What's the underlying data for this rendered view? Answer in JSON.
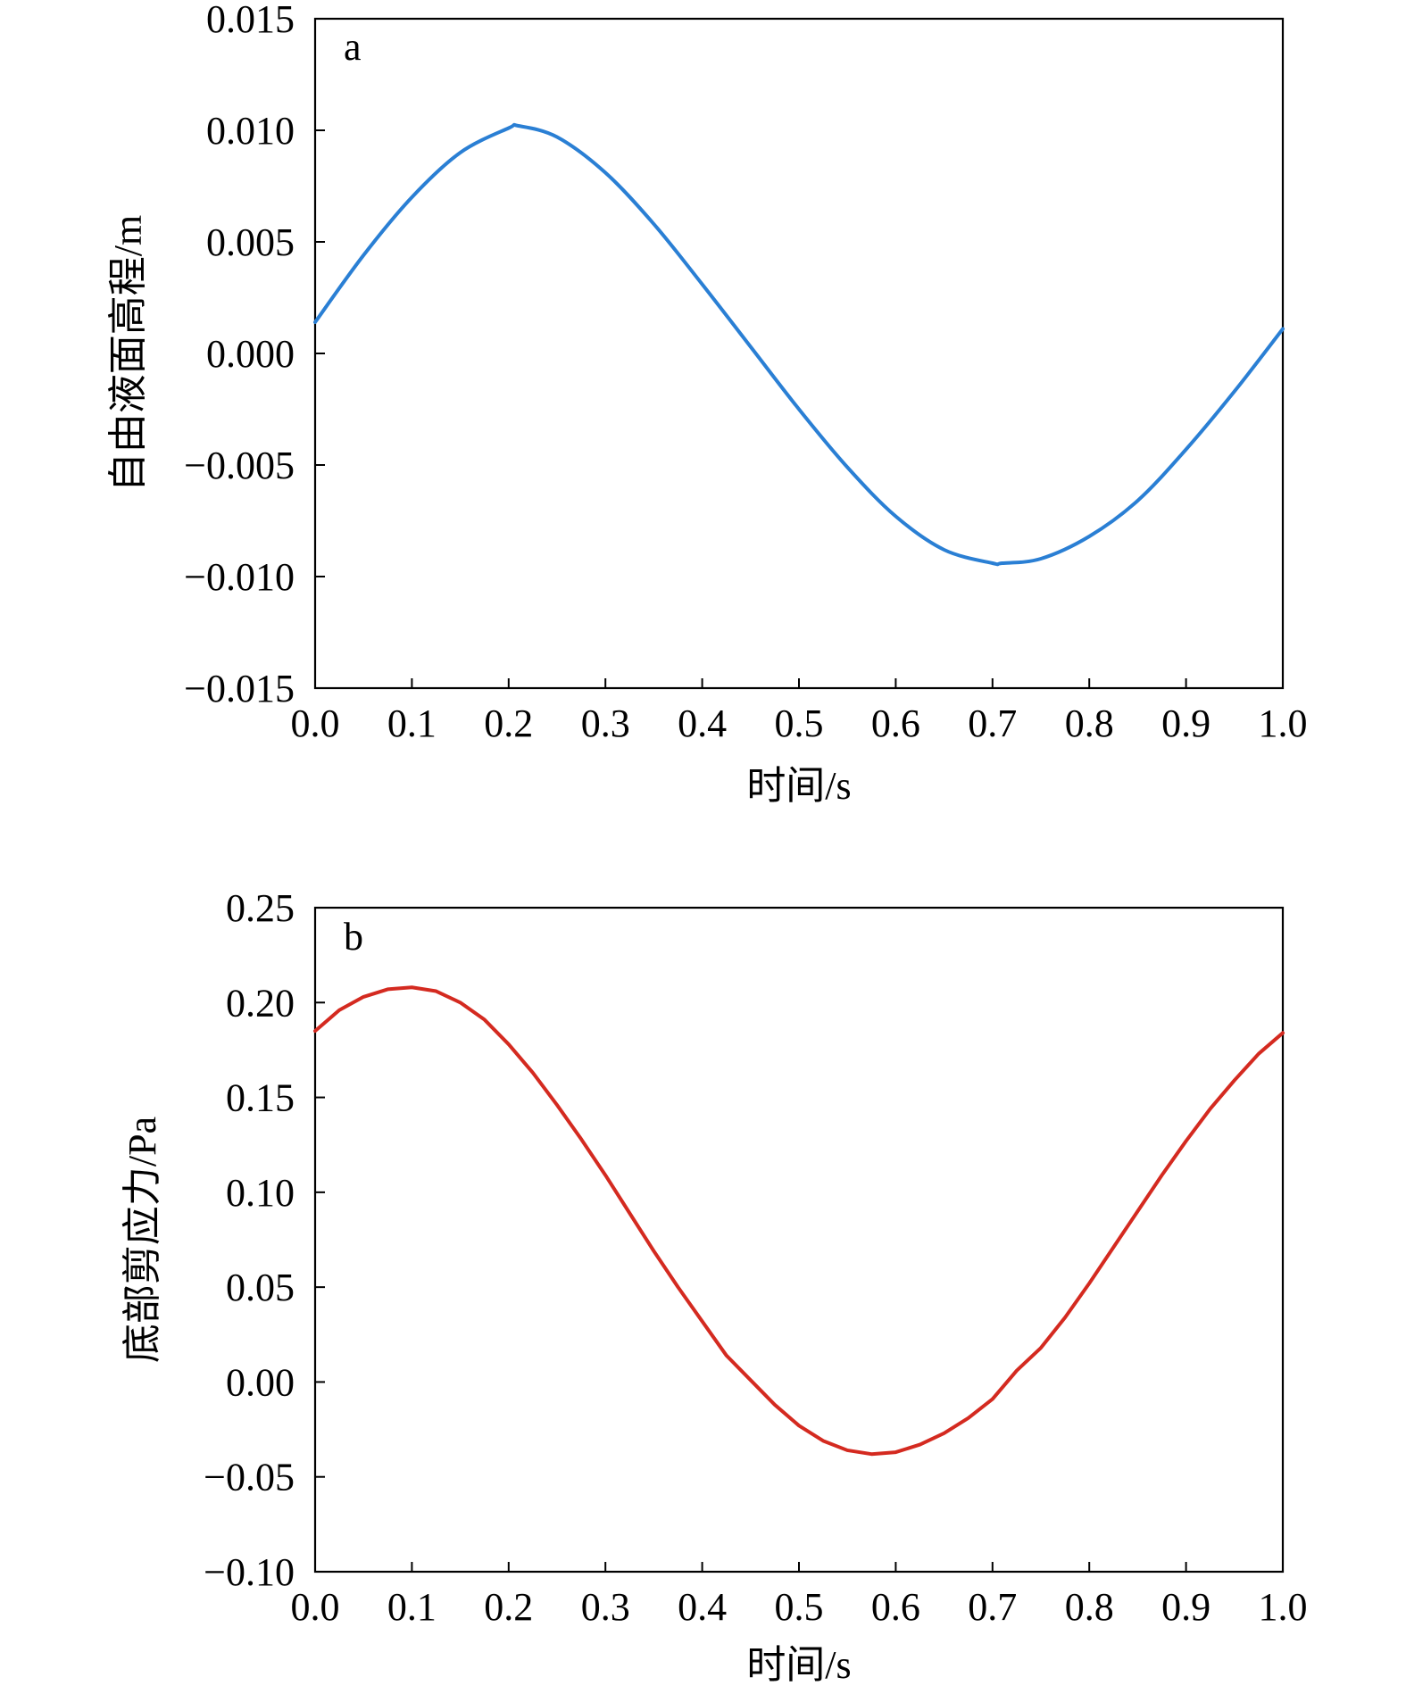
{
  "chart_data": [
    {
      "type": "line",
      "panel_label": "a",
      "xlabel": "时间/s",
      "ylabel": "自由液面高程/m",
      "xlim": [
        0.0,
        1.0
      ],
      "ylim": [
        -0.015,
        0.015
      ],
      "xticks": [
        "0.0",
        "0.1",
        "0.2",
        "0.3",
        "0.4",
        "0.5",
        "0.6",
        "0.7",
        "0.8",
        "0.9",
        "1.0"
      ],
      "yticks": [
        "−0.015",
        "−0.010",
        "−0.005",
        "0.000",
        "0.005",
        "0.010",
        "0.015"
      ],
      "grid": false,
      "series": [
        {
          "color": "#2a7fd4",
          "x": [
            0.0,
            0.05,
            0.1,
            0.15,
            0.2,
            0.21,
            0.25,
            0.3,
            0.35,
            0.4,
            0.45,
            0.5,
            0.55,
            0.6,
            0.65,
            0.7,
            0.71,
            0.75,
            0.8,
            0.85,
            0.9,
            0.95,
            1.0
          ],
          "y": [
            0.0014,
            0.0044,
            0.007,
            0.009,
            0.0101,
            0.0102,
            0.0097,
            0.0081,
            0.0058,
            0.0031,
            0.0003,
            -0.0025,
            -0.0051,
            -0.0073,
            -0.0088,
            -0.0094,
            -0.0094,
            -0.0092,
            -0.0082,
            -0.0066,
            -0.0043,
            -0.0017,
            0.0011
          ]
        }
      ]
    },
    {
      "type": "line",
      "panel_label": "b",
      "xlabel": "时间/s",
      "ylabel": "底部剪应力/Pa",
      "xlim": [
        0.0,
        1.0
      ],
      "ylim": [
        -0.1,
        0.25
      ],
      "xticks": [
        "0.0",
        "0.1",
        "0.2",
        "0.3",
        "0.4",
        "0.5",
        "0.6",
        "0.7",
        "0.8",
        "0.9",
        "1.0"
      ],
      "yticks": [
        "−0.10",
        "−0.05",
        "0.00",
        "0.05",
        "0.10",
        "0.15",
        "0.20",
        "0.25"
      ],
      "grid": false,
      "series": [
        {
          "color": "#d42a20",
          "x": [
            0.0,
            0.025,
            0.05,
            0.075,
            0.1,
            0.125,
            0.15,
            0.175,
            0.2,
            0.225,
            0.25,
            0.275,
            0.3,
            0.325,
            0.35,
            0.375,
            0.4,
            0.425,
            0.45,
            0.475,
            0.5,
            0.525,
            0.55,
            0.575,
            0.6,
            0.625,
            0.65,
            0.675,
            0.7,
            0.725,
            0.75,
            0.775,
            0.8,
            0.825,
            0.85,
            0.875,
            0.9,
            0.925,
            0.95,
            0.975,
            1.0
          ],
          "y": [
            0.185,
            0.196,
            0.203,
            0.207,
            0.208,
            0.206,
            0.2,
            0.191,
            0.178,
            0.163,
            0.146,
            0.128,
            0.109,
            0.089,
            0.069,
            0.05,
            0.032,
            0.014,
            0.001,
            -0.012,
            -0.023,
            -0.031,
            -0.036,
            -0.038,
            -0.037,
            -0.033,
            -0.027,
            -0.019,
            -0.009,
            0.006,
            0.018,
            0.034,
            0.052,
            0.071,
            0.09,
            0.109,
            0.127,
            0.144,
            0.159,
            0.173,
            0.184
          ]
        }
      ]
    }
  ]
}
